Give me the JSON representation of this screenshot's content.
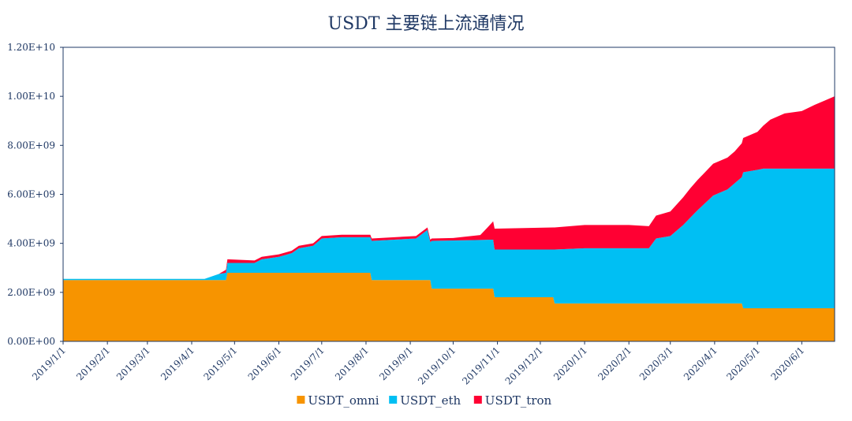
{
  "chart_data": {
    "type": "area",
    "stacked": true,
    "title": "USDT 主要链上流通情况",
    "xlabel": "",
    "ylabel": "",
    "ylim": [
      0,
      12000000000
    ],
    "yticks": [
      {
        "value": 0,
        "label": "0.00E+00"
      },
      {
        "value": 2000000000,
        "label": "2.00E+09"
      },
      {
        "value": 4000000000,
        "label": "4.00E+09"
      },
      {
        "value": 6000000000,
        "label": "6.00E+09"
      },
      {
        "value": 8000000000,
        "label": "8.00E+09"
      },
      {
        "value": 10000000000,
        "label": "1.00E+10"
      },
      {
        "value": 12000000000,
        "label": "1.20E+10"
      }
    ],
    "xlim": [
      "2019/1/1",
      "2020/6/24"
    ],
    "xticks": [
      "2019/1/1",
      "2019/2/1",
      "2019/3/1",
      "2019/4/1",
      "2019/5/1",
      "2019/6/1",
      "2019/7/1",
      "2019/8/1",
      "2019/9/1",
      "2019/10/1",
      "2019/11/1",
      "2019/12/1",
      "2020/1/1",
      "2020/2/1",
      "2020/3/1",
      "2020/4/1",
      "2020/5/1",
      "2020/6/1"
    ],
    "legend_position": "bottom",
    "grid": false,
    "series": [
      {
        "name": "USDT_omni",
        "color": "#f79400",
        "points": [
          [
            "2019/1/1",
            2500000000
          ],
          [
            "2019/4/25",
            2500000000
          ],
          [
            "2019/4/26",
            2800000000
          ],
          [
            "2019/8/4",
            2800000000
          ],
          [
            "2019/8/5",
            2500000000
          ],
          [
            "2019/9/15",
            2500000000
          ],
          [
            "2019/9/16",
            2150000000
          ],
          [
            "2019/10/29",
            2150000000
          ],
          [
            "2019/10/30",
            1800000000
          ],
          [
            "2019/12/10",
            1800000000
          ],
          [
            "2019/12/11",
            1550000000
          ],
          [
            "2020/4/20",
            1550000000
          ],
          [
            "2020/4/21",
            1350000000
          ],
          [
            "2020/6/24",
            1350000000
          ]
        ]
      },
      {
        "name": "USDT_eth",
        "color": "#00bff3",
        "points": [
          [
            "2019/1/1",
            50000000
          ],
          [
            "2019/4/10",
            50000000
          ],
          [
            "2019/4/15",
            150000000
          ],
          [
            "2019/4/20",
            250000000
          ],
          [
            "2019/4/25",
            300000000
          ],
          [
            "2019/4/26",
            400000000
          ],
          [
            "2019/5/15",
            400000000
          ],
          [
            "2019/5/20",
            550000000
          ],
          [
            "2019/6/1",
            650000000
          ],
          [
            "2019/6/10",
            800000000
          ],
          [
            "2019/6/15",
            1000000000
          ],
          [
            "2019/6/25",
            1100000000
          ],
          [
            "2019/7/1",
            1400000000
          ],
          [
            "2019/7/15",
            1450000000
          ],
          [
            "2019/8/4",
            1450000000
          ],
          [
            "2019/8/5",
            1600000000
          ],
          [
            "2019/9/5",
            1700000000
          ],
          [
            "2019/9/13",
            2050000000
          ],
          [
            "2019/9/15",
            1550000000
          ],
          [
            "2019/9/16",
            1950000000
          ],
          [
            "2019/10/29",
            2000000000
          ],
          [
            "2019/10/30",
            1950000000
          ],
          [
            "2019/12/10",
            1950000000
          ],
          [
            "2019/12/11",
            2200000000
          ],
          [
            "2020/1/1",
            2250000000
          ],
          [
            "2020/2/15",
            2250000000
          ],
          [
            "2020/2/20",
            2650000000
          ],
          [
            "2020/3/1",
            2750000000
          ],
          [
            "2020/3/10",
            3200000000
          ],
          [
            "2020/3/20",
            3800000000
          ],
          [
            "2020/3/31",
            4400000000
          ],
          [
            "2020/4/10",
            4650000000
          ],
          [
            "2020/4/20",
            5150000000
          ],
          [
            "2020/4/21",
            5550000000
          ],
          [
            "2020/5/1",
            5650000000
          ],
          [
            "2020/5/5",
            5700000000
          ],
          [
            "2020/6/24",
            5700000000
          ]
        ]
      },
      {
        "name": "USDT_tron",
        "color": "#ff0033",
        "points": [
          [
            "2019/1/1",
            0
          ],
          [
            "2019/4/20",
            0
          ],
          [
            "2019/4/26",
            150000000
          ],
          [
            "2019/5/15",
            100000000
          ],
          [
            "2019/7/15",
            100000000
          ],
          [
            "2019/8/4",
            100000000
          ],
          [
            "2019/8/5",
            100000000
          ],
          [
            "2019/9/15",
            100000000
          ],
          [
            "2019/10/1",
            100000000
          ],
          [
            "2019/10/20",
            200000000
          ],
          [
            "2019/10/25",
            500000000
          ],
          [
            "2019/10/29",
            750000000
          ],
          [
            "2019/10/30",
            850000000
          ],
          [
            "2019/12/10",
            900000000
          ],
          [
            "2019/12/11",
            900000000
          ],
          [
            "2020/1/1",
            950000000
          ],
          [
            "2020/2/1",
            950000000
          ],
          [
            "2020/2/15",
            900000000
          ],
          [
            "2020/3/1",
            1000000000
          ],
          [
            "2020/3/15",
            1200000000
          ],
          [
            "2020/3/31",
            1300000000
          ],
          [
            "2020/4/15",
            1300000000
          ],
          [
            "2020/4/21",
            1400000000
          ],
          [
            "2020/5/1",
            1550000000
          ],
          [
            "2020/5/10",
            2000000000
          ],
          [
            "2020/5/20",
            2250000000
          ],
          [
            "2020/6/1",
            2350000000
          ],
          [
            "2020/6/10",
            2600000000
          ],
          [
            "2020/6/24",
            2950000000
          ]
        ]
      }
    ]
  }
}
